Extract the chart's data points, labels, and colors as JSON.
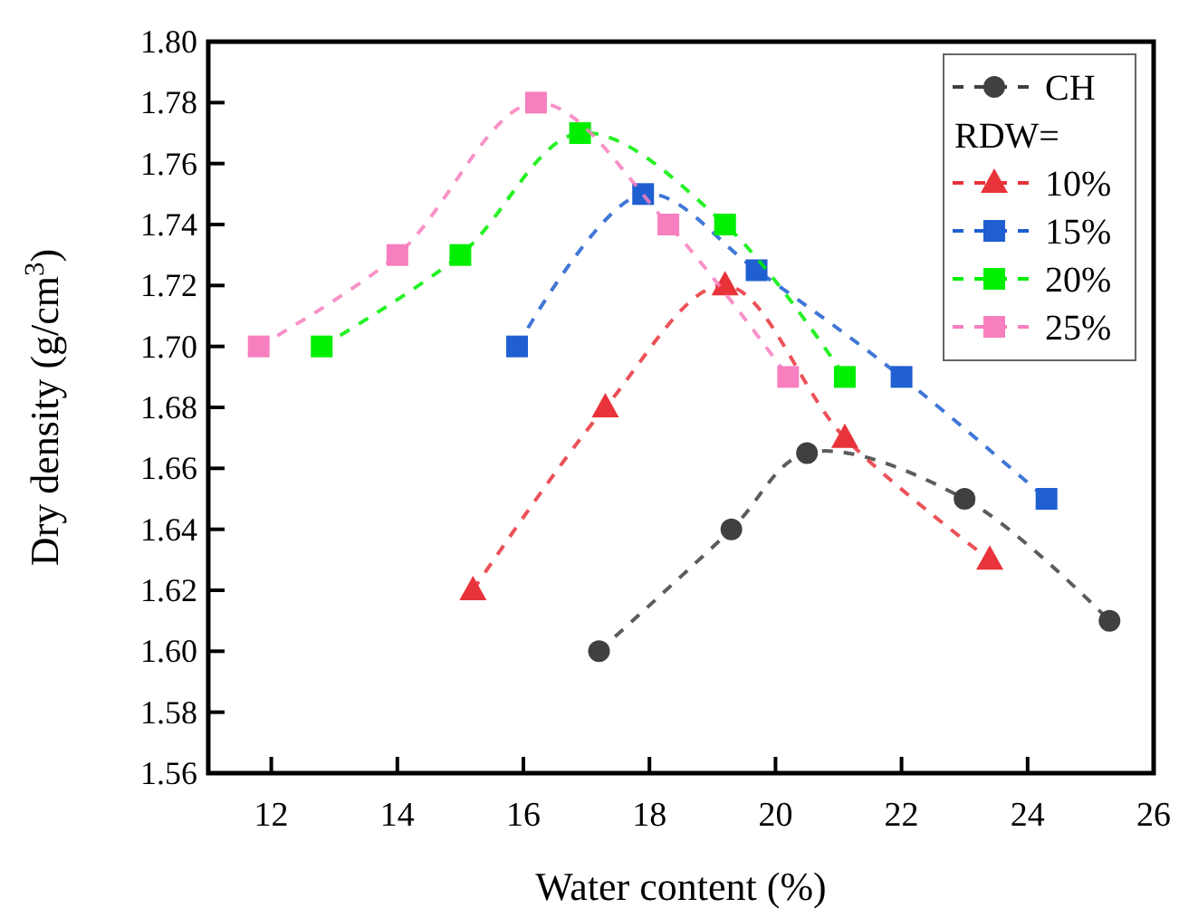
{
  "chart_data": {
    "type": "line",
    "xlabel": "Water content (%)",
    "ylabel": "Dry density (g/cm$^{3}$)",
    "legend_title": "RDW=",
    "legend": "top right",
    "line_style": "dashed",
    "grid": false,
    "xlim": [
      11,
      26
    ],
    "xticks": [
      12,
      14,
      16,
      18,
      20,
      22,
      24,
      26
    ],
    "ylim": [
      1.56,
      1.8
    ],
    "yticks": [
      {
        "value": 1.56,
        "label": "1.56"
      },
      {
        "value": 1.58,
        "label": "1.58"
      },
      {
        "value": 1.6,
        "label": "1.60"
      },
      {
        "value": 1.62,
        "label": "1.62"
      },
      {
        "value": 1.64,
        "label": "1.64"
      },
      {
        "value": 1.66,
        "label": "1.66"
      },
      {
        "value": 1.68,
        "label": "1.68"
      },
      {
        "value": 1.7,
        "label": "1.70"
      },
      {
        "value": 1.72,
        "label": "1.72"
      },
      {
        "value": 1.74,
        "label": "1.74"
      },
      {
        "value": 1.76,
        "label": "1.76"
      },
      {
        "value": 1.78,
        "label": "1.78"
      },
      {
        "value": 1.8,
        "label": "1.80"
      }
    ],
    "series": [
      {
        "name": "CH",
        "color": "#404040",
        "marker": "circle",
        "x": [
          17.2,
          19.3,
          20.5,
          23.0,
          25.3
        ],
        "values": [
          1.6,
          1.64,
          1.665,
          1.65,
          1.61
        ]
      },
      {
        "name": "10%",
        "color": "#e8333a",
        "marker": "triangle",
        "x": [
          15.2,
          17.3,
          19.2,
          21.1,
          23.4
        ],
        "values": [
          1.62,
          1.68,
          1.72,
          1.67,
          1.63
        ]
      },
      {
        "name": "15%",
        "color": "#1f5fd0",
        "marker": "square",
        "x": [
          15.9,
          17.9,
          19.7,
          22.0,
          24.3
        ],
        "values": [
          1.7,
          1.75,
          1.725,
          1.69,
          1.65
        ]
      },
      {
        "name": "20%",
        "color": "#00ee00",
        "marker": "square",
        "x": [
          12.8,
          15.0,
          16.9,
          19.2,
          21.1
        ],
        "values": [
          1.7,
          1.73,
          1.77,
          1.74,
          1.69
        ]
      },
      {
        "name": "25%",
        "color": "#f77fbf",
        "marker": "square",
        "x": [
          11.8,
          14.0,
          16.2,
          18.3,
          20.2
        ],
        "values": [
          1.7,
          1.73,
          1.78,
          1.74,
          1.69
        ]
      }
    ]
  }
}
